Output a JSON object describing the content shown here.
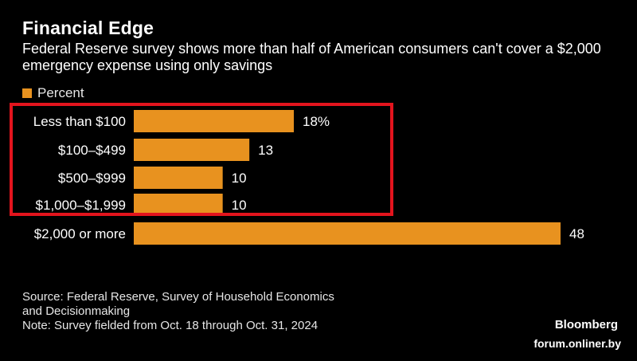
{
  "title": "Financial Edge",
  "subtitle": "Federal Reserve survey shows more than half of American consumers can't cover a $2,000 emergency expense using only savings",
  "legend": {
    "label": "Percent"
  },
  "colors": {
    "bar": "#e8921f",
    "background": "#000000",
    "highlight_box": "#e3141d",
    "text": "#ffffff"
  },
  "chart_data": {
    "type": "bar",
    "orientation": "horizontal",
    "categories": [
      "Less than $100",
      "$100–$499",
      "$500–$999",
      "$1,000–$1,999",
      "$2,000 or more"
    ],
    "values": [
      18,
      13,
      10,
      10,
      48
    ],
    "value_labels": [
      "18%",
      "13",
      "10",
      "10",
      "48"
    ],
    "series": [
      {
        "name": "Percent",
        "values": [
          18,
          13,
          10,
          10,
          48
        ]
      }
    ],
    "xlim": [
      0,
      48
    ],
    "grid": false,
    "legend_position": "top-left"
  },
  "source": {
    "lines": [
      "Source: Federal Reserve, Survey of Household Economics",
      "and Decisionmaking",
      "Note: Survey fielded from Oct. 18 through Oct. 31, 2024"
    ]
  },
  "brand": "Bloomberg",
  "watermark": "forum.onliner.by"
}
